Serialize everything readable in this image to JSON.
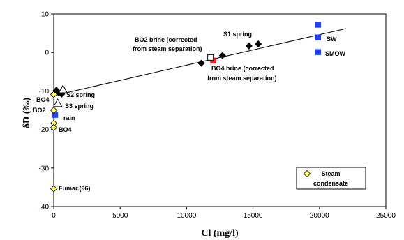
{
  "chart_data": {
    "type": "scatter",
    "xlabel": "Cl (mg/l)",
    "ylabel": "δD (‰)",
    "xlim": [
      0,
      25000
    ],
    "ylim": [
      -40,
      10
    ],
    "x_ticks": [
      0,
      5000,
      10000,
      15000,
      20000,
      25000
    ],
    "y_ticks": [
      -40,
      -30,
      -20,
      -10,
      0,
      10
    ],
    "grid": false,
    "legend": {
      "position": "bottom-right",
      "entries": [
        "Steam condensate"
      ]
    },
    "series": [
      {
        "marker": "diamond",
        "color": "#000000",
        "points": [
          {
            "x": 200,
            "y": -9.8
          },
          {
            "x": 350,
            "y": -10.4
          },
          {
            "x": 600,
            "y": -10.8
          },
          {
            "x": 11100,
            "y": -2.8
          },
          {
            "x": 12700,
            "y": -0.8
          },
          {
            "x": 14700,
            "y": 1.7
          },
          {
            "x": 15400,
            "y": 2.2
          }
        ]
      },
      {
        "marker": "triangle-open",
        "color": "#000000",
        "points": [
          {
            "x": 700,
            "y": -9.6
          },
          {
            "x": 300,
            "y": -13.2
          }
        ]
      },
      {
        "marker": "square",
        "color": "#1f3fff",
        "points": [
          {
            "x": 100,
            "y": -16.2
          },
          {
            "x": 19900,
            "y": 7.2
          },
          {
            "x": 19900,
            "y": 3.9
          },
          {
            "x": 19900,
            "y": 0.1
          }
        ]
      },
      {
        "marker": "square",
        "color": "#ff1a1a",
        "points": [
          {
            "x": 12000,
            "y": -2.1
          }
        ]
      },
      {
        "marker": "square-open",
        "color": "#000000",
        "points": [
          {
            "x": 11800,
            "y": -1.3
          }
        ]
      },
      {
        "name": "Steam condensate",
        "marker": "diamond",
        "color": "#ffff66",
        "points": [
          {
            "x": 0,
            "y": -10.9
          },
          {
            "x": 0,
            "y": -15.0
          },
          {
            "x": 0,
            "y": -18.4
          },
          {
            "x": 0,
            "y": -19.5
          },
          {
            "x": 0,
            "y": -35.4
          }
        ]
      }
    ],
    "trend_line": {
      "x": [
        0,
        22000
      ],
      "y": [
        -11.2,
        6.2
      ]
    },
    "annotations": [
      "BO2 brine (corrected",
      "from steam separation)",
      "S1 spring",
      "SW",
      "SMOW",
      "BO4 brine (corrected",
      "from steam separation)",
      "BO4",
      "S2 spring",
      "BO2",
      "S3 spring",
      "rain",
      "BO4",
      "Fumar.(96)"
    ]
  }
}
